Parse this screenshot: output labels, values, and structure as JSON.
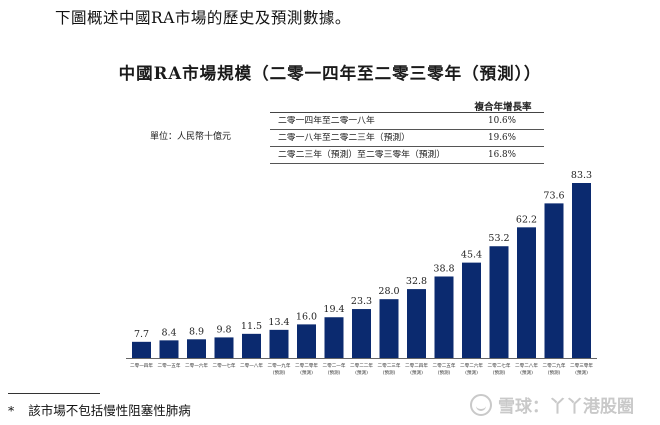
{
  "intro_text": "下圖概述中國RA市場的歷史及預測數據。",
  "unit_label": "單位：人民幣十億元",
  "cagr": {
    "header": "複合年增長率",
    "rows": [
      {
        "period": "二零一四年至二零一八年",
        "rate": "10.6%"
      },
      {
        "period": "二零一八年至二零二三年（預測）",
        "rate": "19.6%"
      },
      {
        "period": "二零二三年（預測）至二零三零年（預測）",
        "rate": "16.8%"
      }
    ]
  },
  "footnote": {
    "mark": "*",
    "text": "該市場不包括慢性阻塞性肺病"
  },
  "watermark": "雪球：丫丫港股圈",
  "colors": {
    "bar": "#0b2a6f"
  },
  "chart_data": {
    "type": "bar",
    "title": "中國RA市場規模（二零一四年至二零三零年（預測））",
    "xlabel": "",
    "ylabel": "",
    "ylim": [
      0,
      90
    ],
    "categories": [
      {
        "line1": "二零一四年",
        "line2": ""
      },
      {
        "line1": "二零一五年",
        "line2": ""
      },
      {
        "line1": "二零一六年",
        "line2": ""
      },
      {
        "line1": "二零一七年",
        "line2": ""
      },
      {
        "line1": "二零一八年",
        "line2": ""
      },
      {
        "line1": "二零一九年",
        "line2": "(預測)"
      },
      {
        "line1": "二零二零年",
        "line2": "(預測)"
      },
      {
        "line1": "二零二一年",
        "line2": "(預測)"
      },
      {
        "line1": "二零二二年",
        "line2": "(預測)"
      },
      {
        "line1": "二零二三年",
        "line2": "(預測)"
      },
      {
        "line1": "二零二四年",
        "line2": "(預測)"
      },
      {
        "line1": "二零二五年",
        "line2": "(預測)"
      },
      {
        "line1": "二零二六年",
        "line2": "(預測)"
      },
      {
        "line1": "二零二七年",
        "line2": "(預測)"
      },
      {
        "line1": "二零二八年",
        "line2": "(預測)"
      },
      {
        "line1": "二零二九年",
        "line2": "(預測)"
      },
      {
        "line1": "二零三零年",
        "line2": "(預測)"
      }
    ],
    "values": [
      7.7,
      8.4,
      8.9,
      9.8,
      11.5,
      13.4,
      16.0,
      19.4,
      23.3,
      28.0,
      32.8,
      38.8,
      45.4,
      53.2,
      62.2,
      73.6,
      83.3
    ],
    "labels": [
      "7.7",
      "8.4",
      "8.9",
      "9.8",
      "11.5",
      "13.4",
      "16.0",
      "19.4",
      "23.3",
      "28.0",
      "32.8",
      "38.8",
      "45.4",
      "53.2",
      "62.2",
      "73.6",
      "83.3"
    ]
  }
}
